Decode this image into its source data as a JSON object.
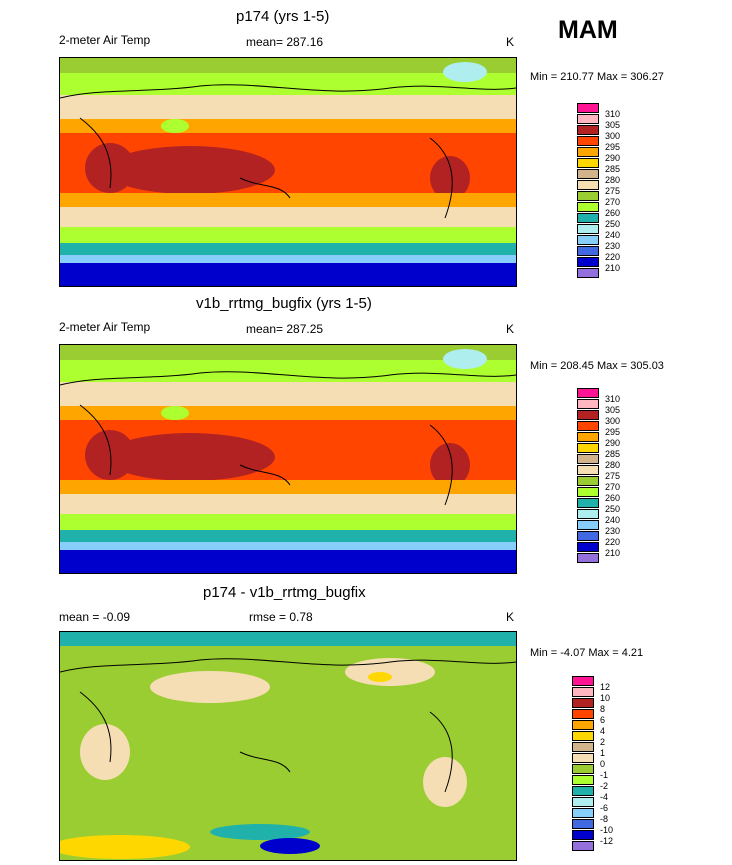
{
  "season": "MAM",
  "panels": [
    {
      "id": "top",
      "title": "p174 (yrs 1-5)",
      "field": "2-meter Air Temp",
      "stat": "mean= 287.16",
      "units": "K",
      "minmax": "Min = 210.77 Max = 306.27"
    },
    {
      "id": "mid",
      "title": "v1b_rrtmg_bugfix (yrs 1-5)",
      "field": "2-meter Air Temp",
      "stat": "mean= 287.25",
      "units": "K",
      "minmax": "Min = 208.45 Max = 305.03"
    },
    {
      "id": "bot",
      "title": "p174 - v1b_rrtmg_bugfix",
      "mean": "mean =  -0.09",
      "rmse": "rmse =   0.78",
      "units": "K",
      "minmax": "Min =  -4.07 Max =   4.21"
    }
  ],
  "legend_abs": {
    "labels": [
      "310",
      "305",
      "300",
      "295",
      "290",
      "285",
      "280",
      "275",
      "270",
      "260",
      "250",
      "240",
      "230",
      "220",
      "210"
    ],
    "colors": [
      "#ff1493",
      "#ffb6c1",
      "#b22222",
      "#ff4500",
      "#ffa500",
      "#ffd700",
      "#d2b48c",
      "#f5deb3",
      "#9acd32",
      "#adff2f",
      "#20b2aa",
      "#afeeee",
      "#87cefa",
      "#4169e1",
      "#0000cd",
      "#9370db"
    ]
  },
  "legend_diff": {
    "labels": [
      "12",
      "10",
      "8",
      "6",
      "4",
      "2",
      "1",
      "0",
      "-1",
      "-2",
      "-4",
      "-6",
      "-8",
      "-10",
      "-12"
    ],
    "colors": [
      "#ff1493",
      "#ffb6c1",
      "#b22222",
      "#ff4500",
      "#ffa500",
      "#ffd700",
      "#d2b48c",
      "#f5deb3",
      "#9acd32",
      "#adff2f",
      "#20b2aa",
      "#afeeee",
      "#87cefa",
      "#4169e1",
      "#0000cd",
      "#9370db"
    ]
  }
}
